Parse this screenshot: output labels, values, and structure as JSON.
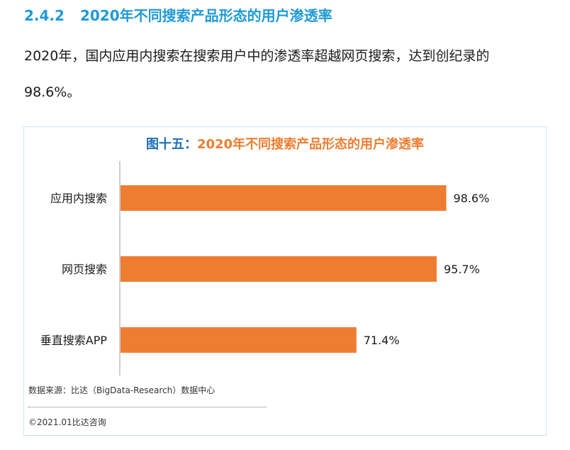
{
  "section": {
    "number": "2.4.2",
    "title": "2020年不同搜索产品形态的用户渗透率"
  },
  "paragraph": {
    "line1": "2020年，国内应用内搜索在搜索用户中的渗透率超越网页搜索，达到创纪录的",
    "line2": "98.6%。"
  },
  "colors": {
    "heading": "#1f9ad6",
    "title_prefix": "#1f6fb4",
    "title_suffix": "#ee7d31",
    "bar": "#ee7d31"
  },
  "chart_data": {
    "type": "bar",
    "orientation": "horizontal",
    "title_prefix": "图十五：",
    "title": "2020年不同搜索产品形态的用户渗透率",
    "categories": [
      "应用内搜索",
      "网页搜索",
      "垂直搜索APP"
    ],
    "values": [
      98.6,
      95.7,
      71.4
    ],
    "value_labels": [
      "98.6%",
      "95.7%",
      "71.4%"
    ],
    "xlim": [
      0,
      100
    ],
    "xlabel": "",
    "ylabel": "",
    "grid": false,
    "legend": "none"
  },
  "footer": {
    "source": "数据来源：比达（BigData-Research）数据中心",
    "copyright": "©2021.01比达咨询"
  }
}
